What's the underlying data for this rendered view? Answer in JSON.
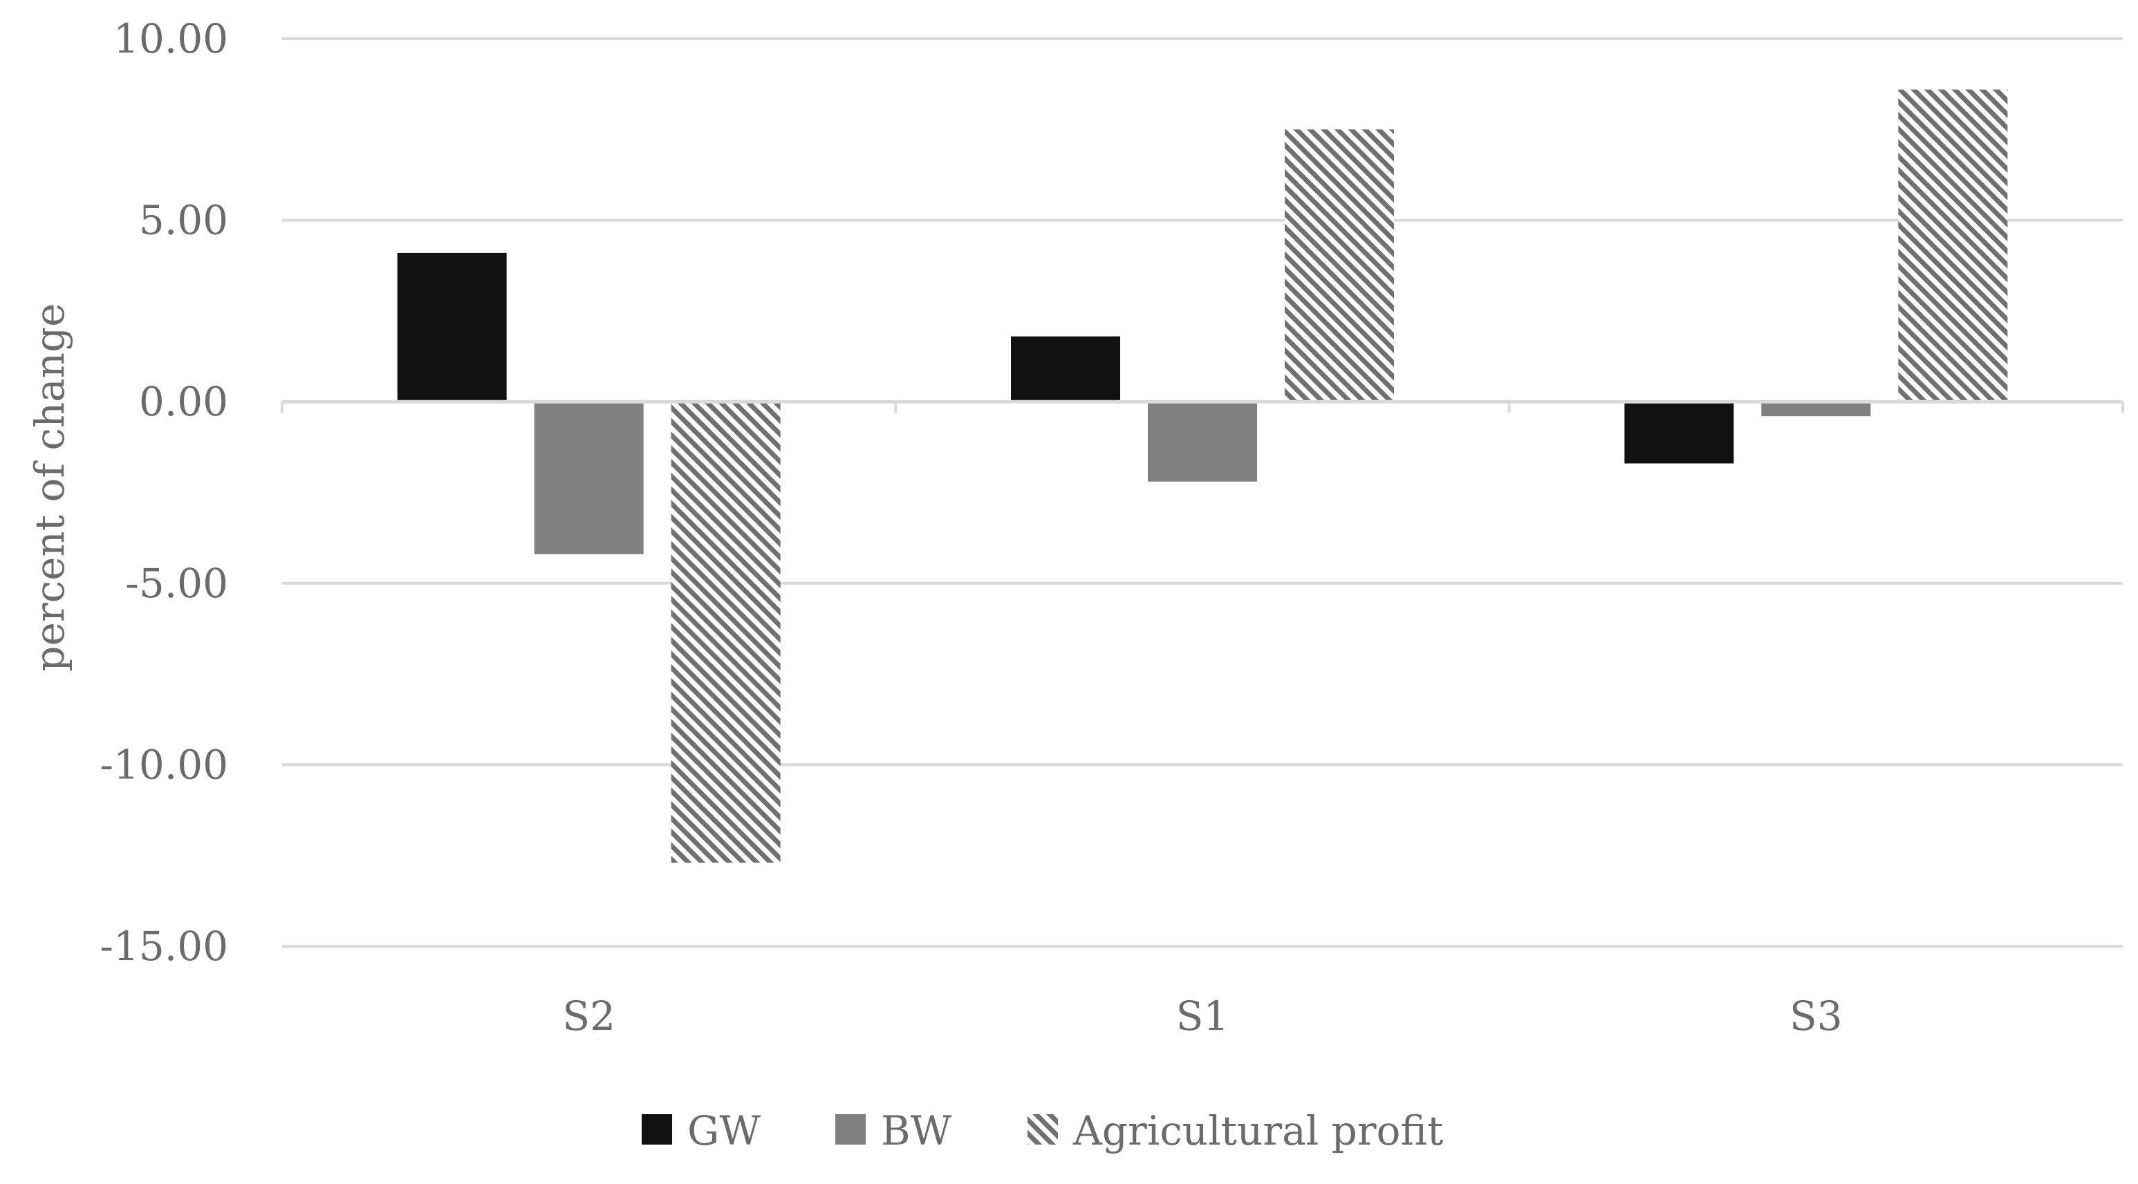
{
  "chart_data": {
    "type": "bar",
    "title": "",
    "xlabel": "",
    "ylabel": "percent of change",
    "categories": [
      "S2",
      "S1",
      "S3"
    ],
    "series": [
      {
        "name": "GW",
        "values": [
          4.1,
          1.8,
          -1.7
        ],
        "color": "#111111",
        "pattern": "solid"
      },
      {
        "name": "BW",
        "values": [
          -4.2,
          -2.2,
          -0.4
        ],
        "color": "#808080",
        "pattern": "solid"
      },
      {
        "name": "Agricultural profit",
        "values": [
          -12.7,
          7.5,
          8.6
        ],
        "color": "#707070",
        "pattern": "diagonal-hatch"
      }
    ],
    "ylim": [
      -15,
      10
    ],
    "yticks": [
      10,
      5,
      0,
      -5,
      -10,
      -15
    ],
    "ytick_labels": [
      "10.00",
      "5.00",
      "0.00",
      "-5.00",
      "-10.00",
      "-15.00"
    ],
    "grid": true,
    "legend_position": "bottom-center"
  },
  "colors": {
    "grid": "#d9d9d9",
    "axis_text": "#6b6b6b",
    "gw": "#111111",
    "bw": "#808080",
    "hatch": "#707070"
  }
}
